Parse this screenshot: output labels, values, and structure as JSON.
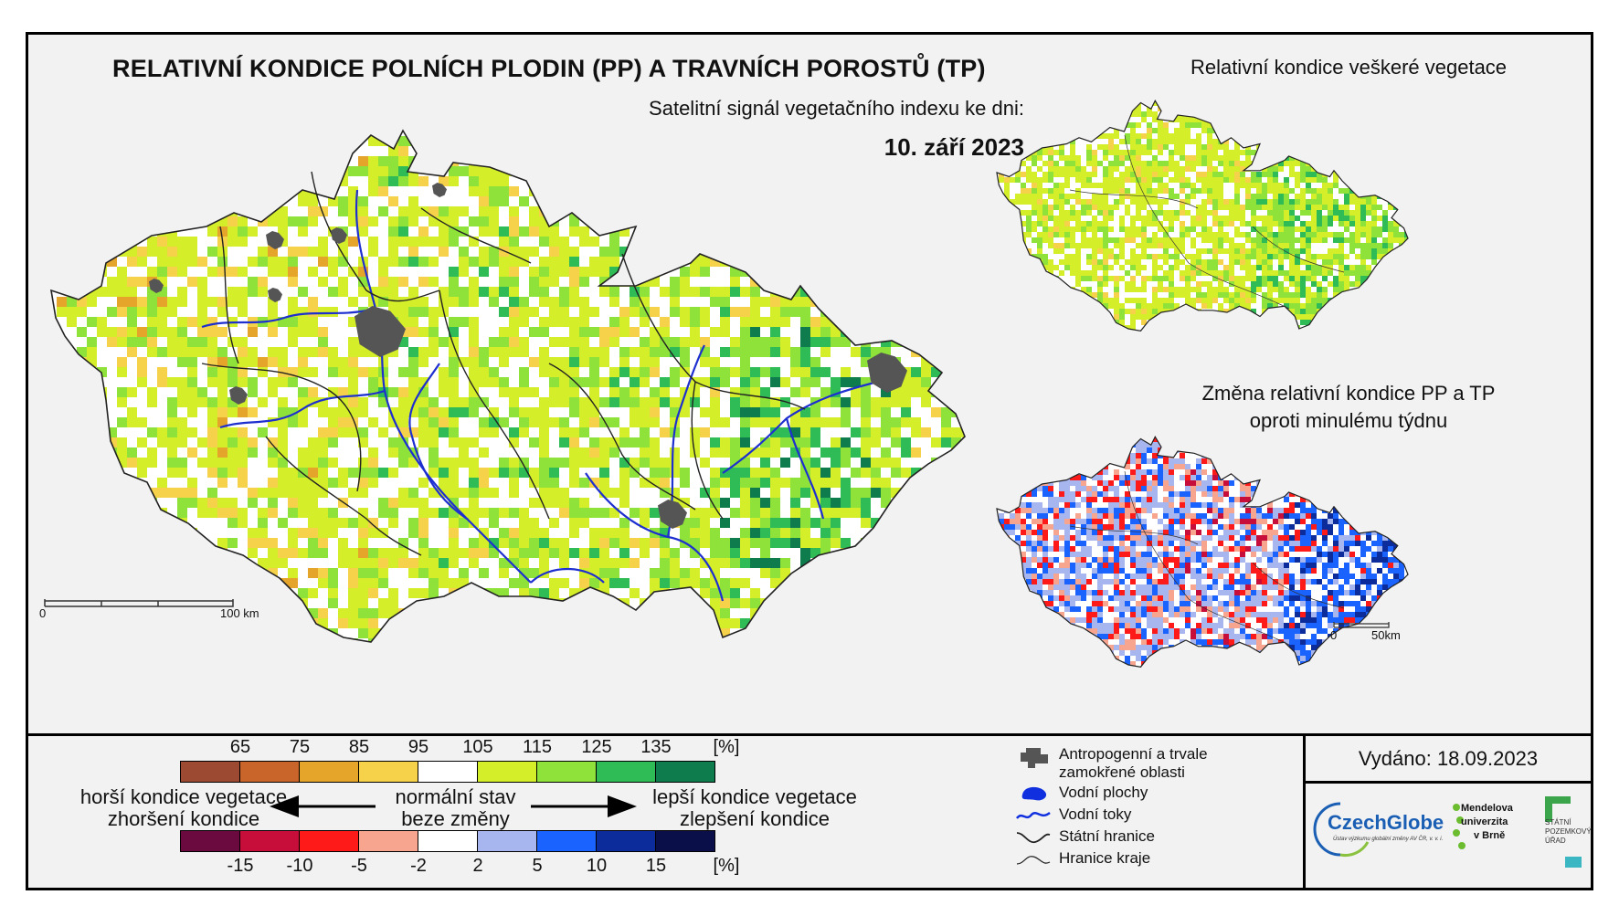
{
  "title": "RELATIVNÍ KONDICE POLNÍCH PLODIN (PP) A TRAVNÍCH POROSTŮ (TP)",
  "subtitle": "Satelitní signál vegetačního indexu ke dni:",
  "date": "10. září 2023",
  "side_map_1_title": "Relativní kondice veškeré vegetace",
  "side_map_2_title_line1": "Změna relativní kondice PP a TP",
  "side_map_2_title_line2": "oproti minulému týdnu",
  "main_scale": {
    "zero": "0",
    "end": "100 km"
  },
  "small_scale": {
    "zero": "0",
    "end": "50km"
  },
  "condition_scale": {
    "ticks": [
      "65",
      "75",
      "85",
      "95",
      "105",
      "115",
      "125",
      "135",
      "[%]"
    ],
    "colors": [
      "#9c4a32",
      "#c9652a",
      "#e5a52b",
      "#f6d24a",
      "#ffffff",
      "#d5ee2a",
      "#8fe23a",
      "#2fbb55",
      "#0f7c4e"
    ]
  },
  "change_scale": {
    "ticks": [
      "-15",
      "-10",
      "-5",
      "-2",
      "2",
      "5",
      "10",
      "15",
      "[%]"
    ],
    "colors": [
      "#6b0a3e",
      "#c70d3a",
      "#ff1a1a",
      "#f7a58e",
      "#ffffff",
      "#a8b6f0",
      "#1a63ff",
      "#0d2c9c",
      "#0a0f4a"
    ]
  },
  "legend_text": {
    "worse_1": "horší kondice vegetace",
    "worse_2": "zhoršení kondice",
    "normal_1": "normální stav",
    "normal_2": "beze změny",
    "better_1": "lepší kondice vegetace",
    "better_2": "zlepšení kondice"
  },
  "map_legend": [
    {
      "label": "Antropogenní a trvale zamokřené oblasti",
      "icon": "urban-area-icon"
    },
    {
      "label": "Vodní plochy",
      "icon": "water-body-icon"
    },
    {
      "label": "Vodní toky",
      "icon": "river-icon"
    },
    {
      "label": "Státní hranice",
      "icon": "state-border-icon"
    },
    {
      "label": "Hranice kraje",
      "icon": "region-border-icon"
    }
  ],
  "issued": "Vydáno: 18.09.2023",
  "logos": {
    "czechglobe": "CzechGlobe",
    "czechglobe_sub": "Ústav výzkumu globální změny AV ČR, v. v. i.",
    "mendel_1": "Mendelova",
    "mendel_2": "univerzita",
    "mendel_3": "v Brně",
    "spu_1": "STÁTNÍ",
    "spu_2": "POZEMKOVÝ",
    "spu_3": "ÚŘAD"
  }
}
